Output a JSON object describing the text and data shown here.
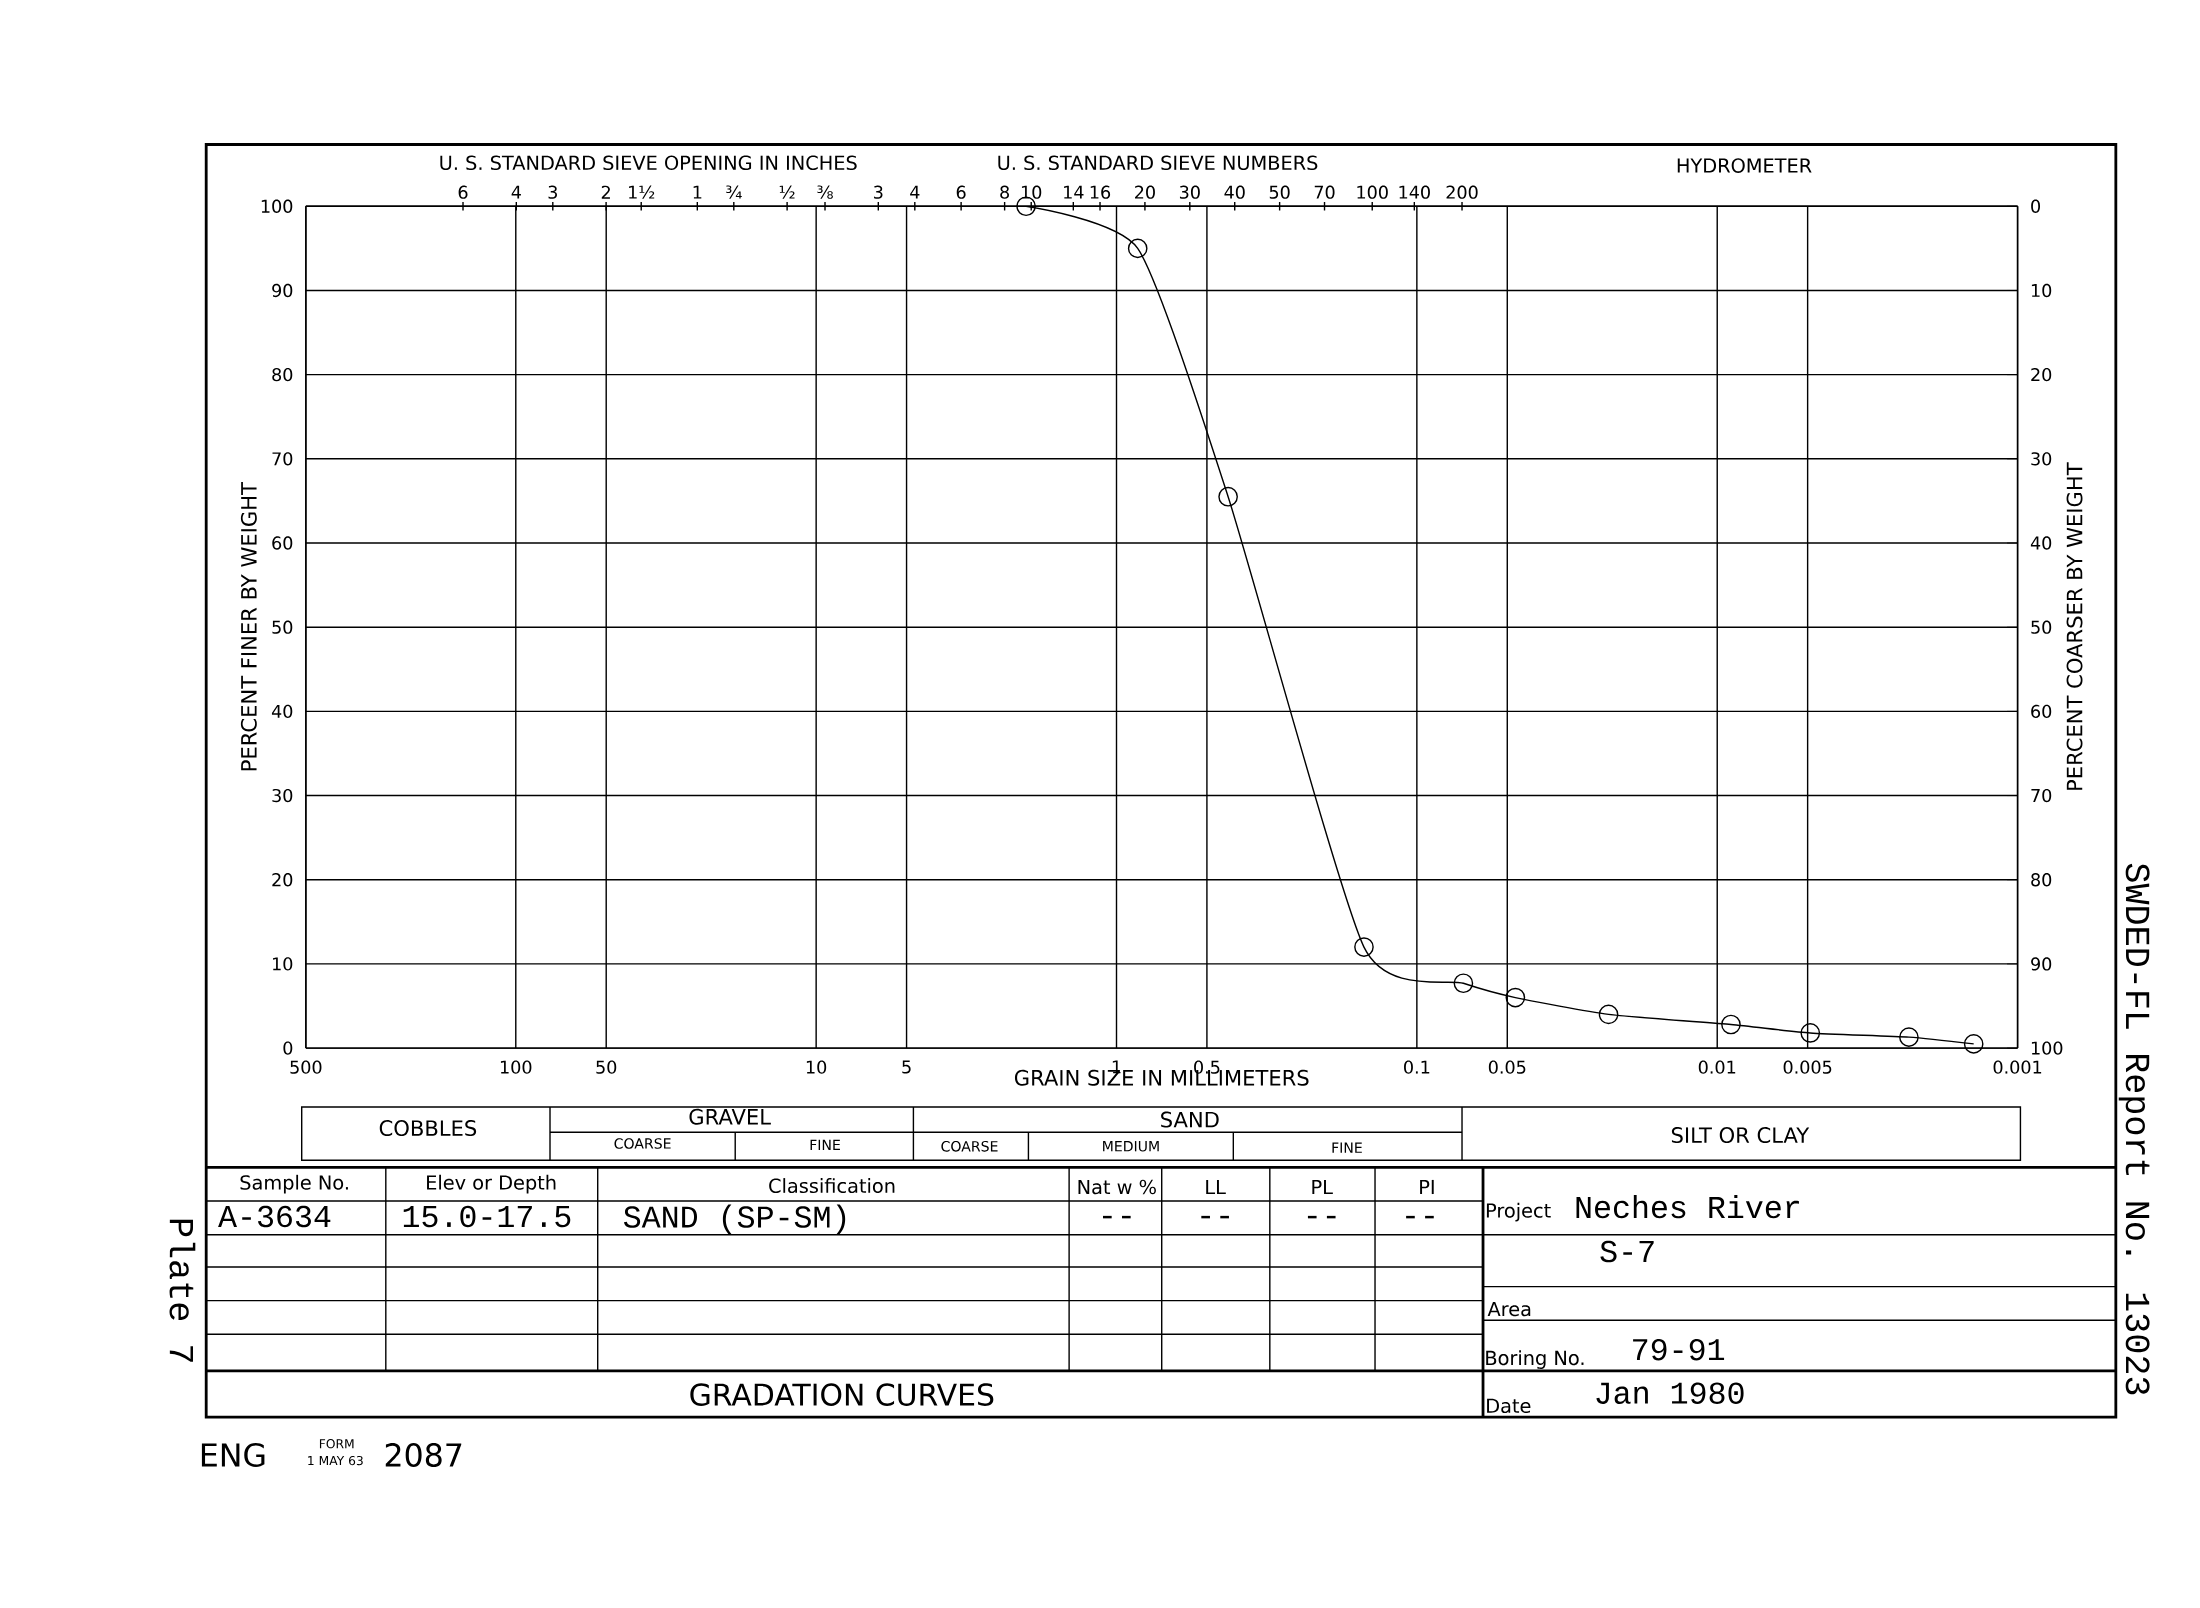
{
  "chart_data": {
    "type": "line",
    "title": "GRADATION CURVES",
    "xlabel": "GRAIN SIZE IN MILLIMETERS",
    "ylabel": "PERCENT FINER BY WEIGHT",
    "y2label": "PERCENT COARSER BY WEIGHT",
    "log": "x",
    "grid": true,
    "marker": "circle",
    "line_style": "solid",
    "xlim": [
      500,
      0.001
    ],
    "ylim": [
      0,
      100
    ],
    "y2lim": [
      100,
      0
    ],
    "xticks": [
      500,
      100,
      50,
      10,
      5,
      1,
      0.5,
      0.1,
      0.05,
      0.01,
      0.005,
      0.001
    ],
    "yticks": [
      0,
      10,
      20,
      30,
      40,
      50,
      60,
      70,
      80,
      90,
      100
    ],
    "y2ticks": [
      0,
      10,
      20,
      30,
      40,
      50,
      60,
      70,
      80,
      90,
      100
    ],
    "series": [
      {
        "color": "#000000",
        "x": [
          2.0,
          0.85,
          0.425,
          0.15,
          0.07,
          0.047,
          0.023,
          0.009,
          0.0049,
          0.0023,
          0.0014
        ],
        "values": [
          100,
          95,
          65.5,
          12,
          7.7,
          6,
          4,
          2.8,
          1.8,
          1.3,
          0.5
        ]
      }
    ],
    "annotations": [
      "U. S. STANDARD SIEVE OPENING IN INCHES",
      "U. S. STANDARD SIEVE NUMBERS",
      "HYDROMETER",
      "COBBLES",
      "GRAVEL",
      "COARSE",
      "FINE",
      "SAND",
      "COARSE",
      "MEDIUM",
      "FINE",
      "SILT OR CLAY",
      "Sample No.",
      "Elev or Depth",
      "Classification",
      "Nat w %",
      "LL",
      "PL",
      "PI",
      "A-3634",
      "15.0-17.5",
      "SAND    (SP-SM)",
      "--",
      "--",
      "--",
      "--",
      "Project",
      "Neches River",
      "S-7",
      "Area",
      "Boring No.",
      "79-91",
      "Date",
      "Jan 1980",
      "ENG",
      "FORM",
      "1 MAY 63",
      "2087",
      "SWDED-FL Report No. 13023",
      "Plate 7",
      "6",
      "4",
      "3",
      "2",
      "1½",
      "1",
      "¾",
      "½",
      "⅜",
      "3",
      "4",
      "6",
      "8",
      "10",
      "14",
      "16",
      "20",
      "30",
      "40",
      "50",
      "70",
      "100",
      "140",
      "200"
    ]
  }
}
